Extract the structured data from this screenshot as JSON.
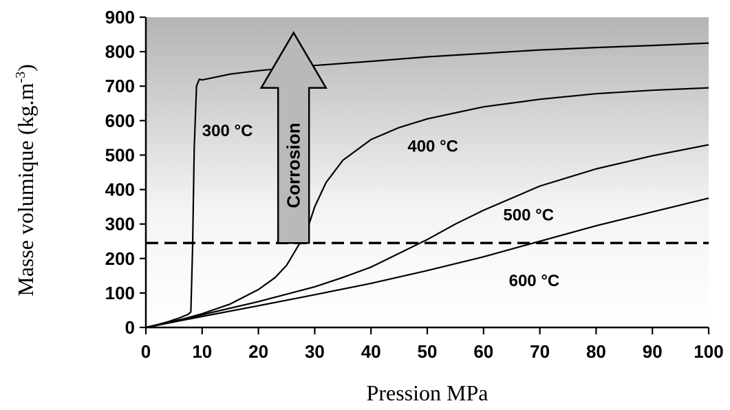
{
  "chart_data": {
    "type": "line",
    "xlabel": "Pression MPa",
    "ylabel_main": "Masse volumique (kg.m",
    "ylabel_sup": "-3",
    "ylabel_close": ")",
    "xlim": [
      0,
      100
    ],
    "ylim": [
      0,
      900
    ],
    "xticks": [
      "0",
      "10",
      "20",
      "30",
      "40",
      "50",
      "60",
      "70",
      "80",
      "90",
      "100"
    ],
    "yticks": [
      "0",
      "100",
      "200",
      "300",
      "400",
      "500",
      "600",
      "700",
      "800",
      "900"
    ],
    "series": [
      {
        "name": "300 °C",
        "x": [
          0,
          2,
          4,
          6,
          7.5,
          8.0,
          8.3,
          8.6,
          9.0,
          9.5,
          10,
          15,
          20,
          30,
          40,
          50,
          60,
          70,
          80,
          90,
          100
        ],
        "y": [
          0,
          8,
          17,
          28,
          38,
          45,
          230,
          520,
          700,
          720,
          718,
          735,
          745,
          760,
          772,
          785,
          795,
          805,
          812,
          818,
          825
        ]
      },
      {
        "name": "400 °C",
        "x": [
          0,
          5,
          10,
          15,
          20,
          23,
          25,
          27,
          28,
          29,
          30,
          32,
          35,
          40,
          45,
          50,
          60,
          70,
          80,
          90,
          100
        ],
        "y": [
          0,
          17,
          40,
          68,
          110,
          145,
          180,
          235,
          260,
          300,
          350,
          420,
          485,
          545,
          580,
          605,
          640,
          662,
          678,
          688,
          695
        ]
      },
      {
        "name": "500 °C",
        "x": [
          0,
          10,
          20,
          30,
          35,
          40,
          45,
          50,
          55,
          60,
          70,
          80,
          90,
          100
        ],
        "y": [
          0,
          37,
          75,
          118,
          145,
          175,
          215,
          255,
          300,
          340,
          410,
          460,
          498,
          530
        ]
      },
      {
        "name": "600 °C",
        "x": [
          0,
          10,
          20,
          30,
          40,
          50,
          60,
          70,
          80,
          90,
          100
        ],
        "y": [
          0,
          32,
          63,
          95,
          128,
          165,
          205,
          250,
          295,
          335,
          375
        ]
      }
    ],
    "series_labels": [
      {
        "text": "300 °C",
        "x": 10.0,
        "y": 555
      },
      {
        "text": "400 °C",
        "x": 46.5,
        "y": 510
      },
      {
        "text": "500 °C",
        "x": 63.5,
        "y": 310
      },
      {
        "text": "600 °C",
        "x": 64.5,
        "y": 120
      }
    ],
    "reference_line": {
      "y": 245,
      "style": "dashed"
    },
    "arrow": {
      "label": "Corrosion",
      "x_left": 23.5,
      "x_right": 29.0,
      "y_base": 245,
      "y_tip": 855,
      "y_head_base": 695,
      "head_x_left": 20.5,
      "head_x_right": 32.0
    },
    "background": {
      "gradient_top": "#b4b4b4",
      "gradient_bottom": "#ffffff"
    },
    "line_color": "#000000",
    "arrow_fill": "#b9b9b9"
  }
}
